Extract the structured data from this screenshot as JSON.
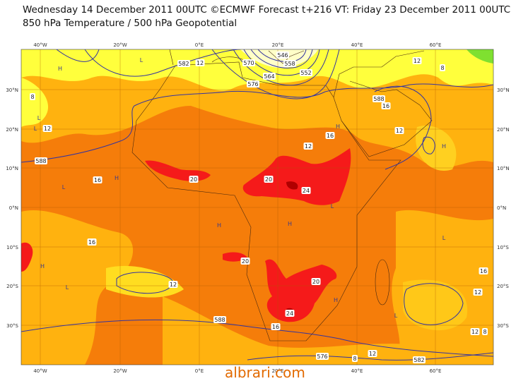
{
  "header": {
    "line1": "Wednesday 14 December 2011 00UTC ©ECMWF Forecast t+216 VT: Friday 23 December 2011 00UTC",
    "line2": "850 hPa Temperature / 500 hPa Geopotential"
  },
  "map": {
    "lon_labels": [
      "40°W",
      "20°W",
      "0°E",
      "20°E",
      "40°E",
      "60°E"
    ],
    "lat_labels": [
      "30°N",
      "20°N",
      "10°N",
      "0°N",
      "10°S",
      "20°S",
      "30°S"
    ],
    "contour_labels": [
      "8",
      "12",
      "16",
      "16",
      "12",
      "20",
      "20",
      "24",
      "20",
      "20",
      "24",
      "16",
      "12",
      "16",
      "16",
      "12",
      "12",
      "8",
      "16",
      "12",
      "12",
      "8",
      "12",
      "8",
      "588",
      "582",
      "12",
      "576",
      "570",
      "564",
      "558",
      "552",
      "546",
      "588",
      "582",
      "576",
      "588"
    ],
    "pressure_centers": [
      "H",
      "L",
      "L",
      "H",
      "L",
      "H",
      "L",
      "H",
      "H",
      "L",
      "H",
      "L",
      "H",
      "L",
      "H",
      "L"
    ]
  },
  "watermark": "albrari.com"
}
